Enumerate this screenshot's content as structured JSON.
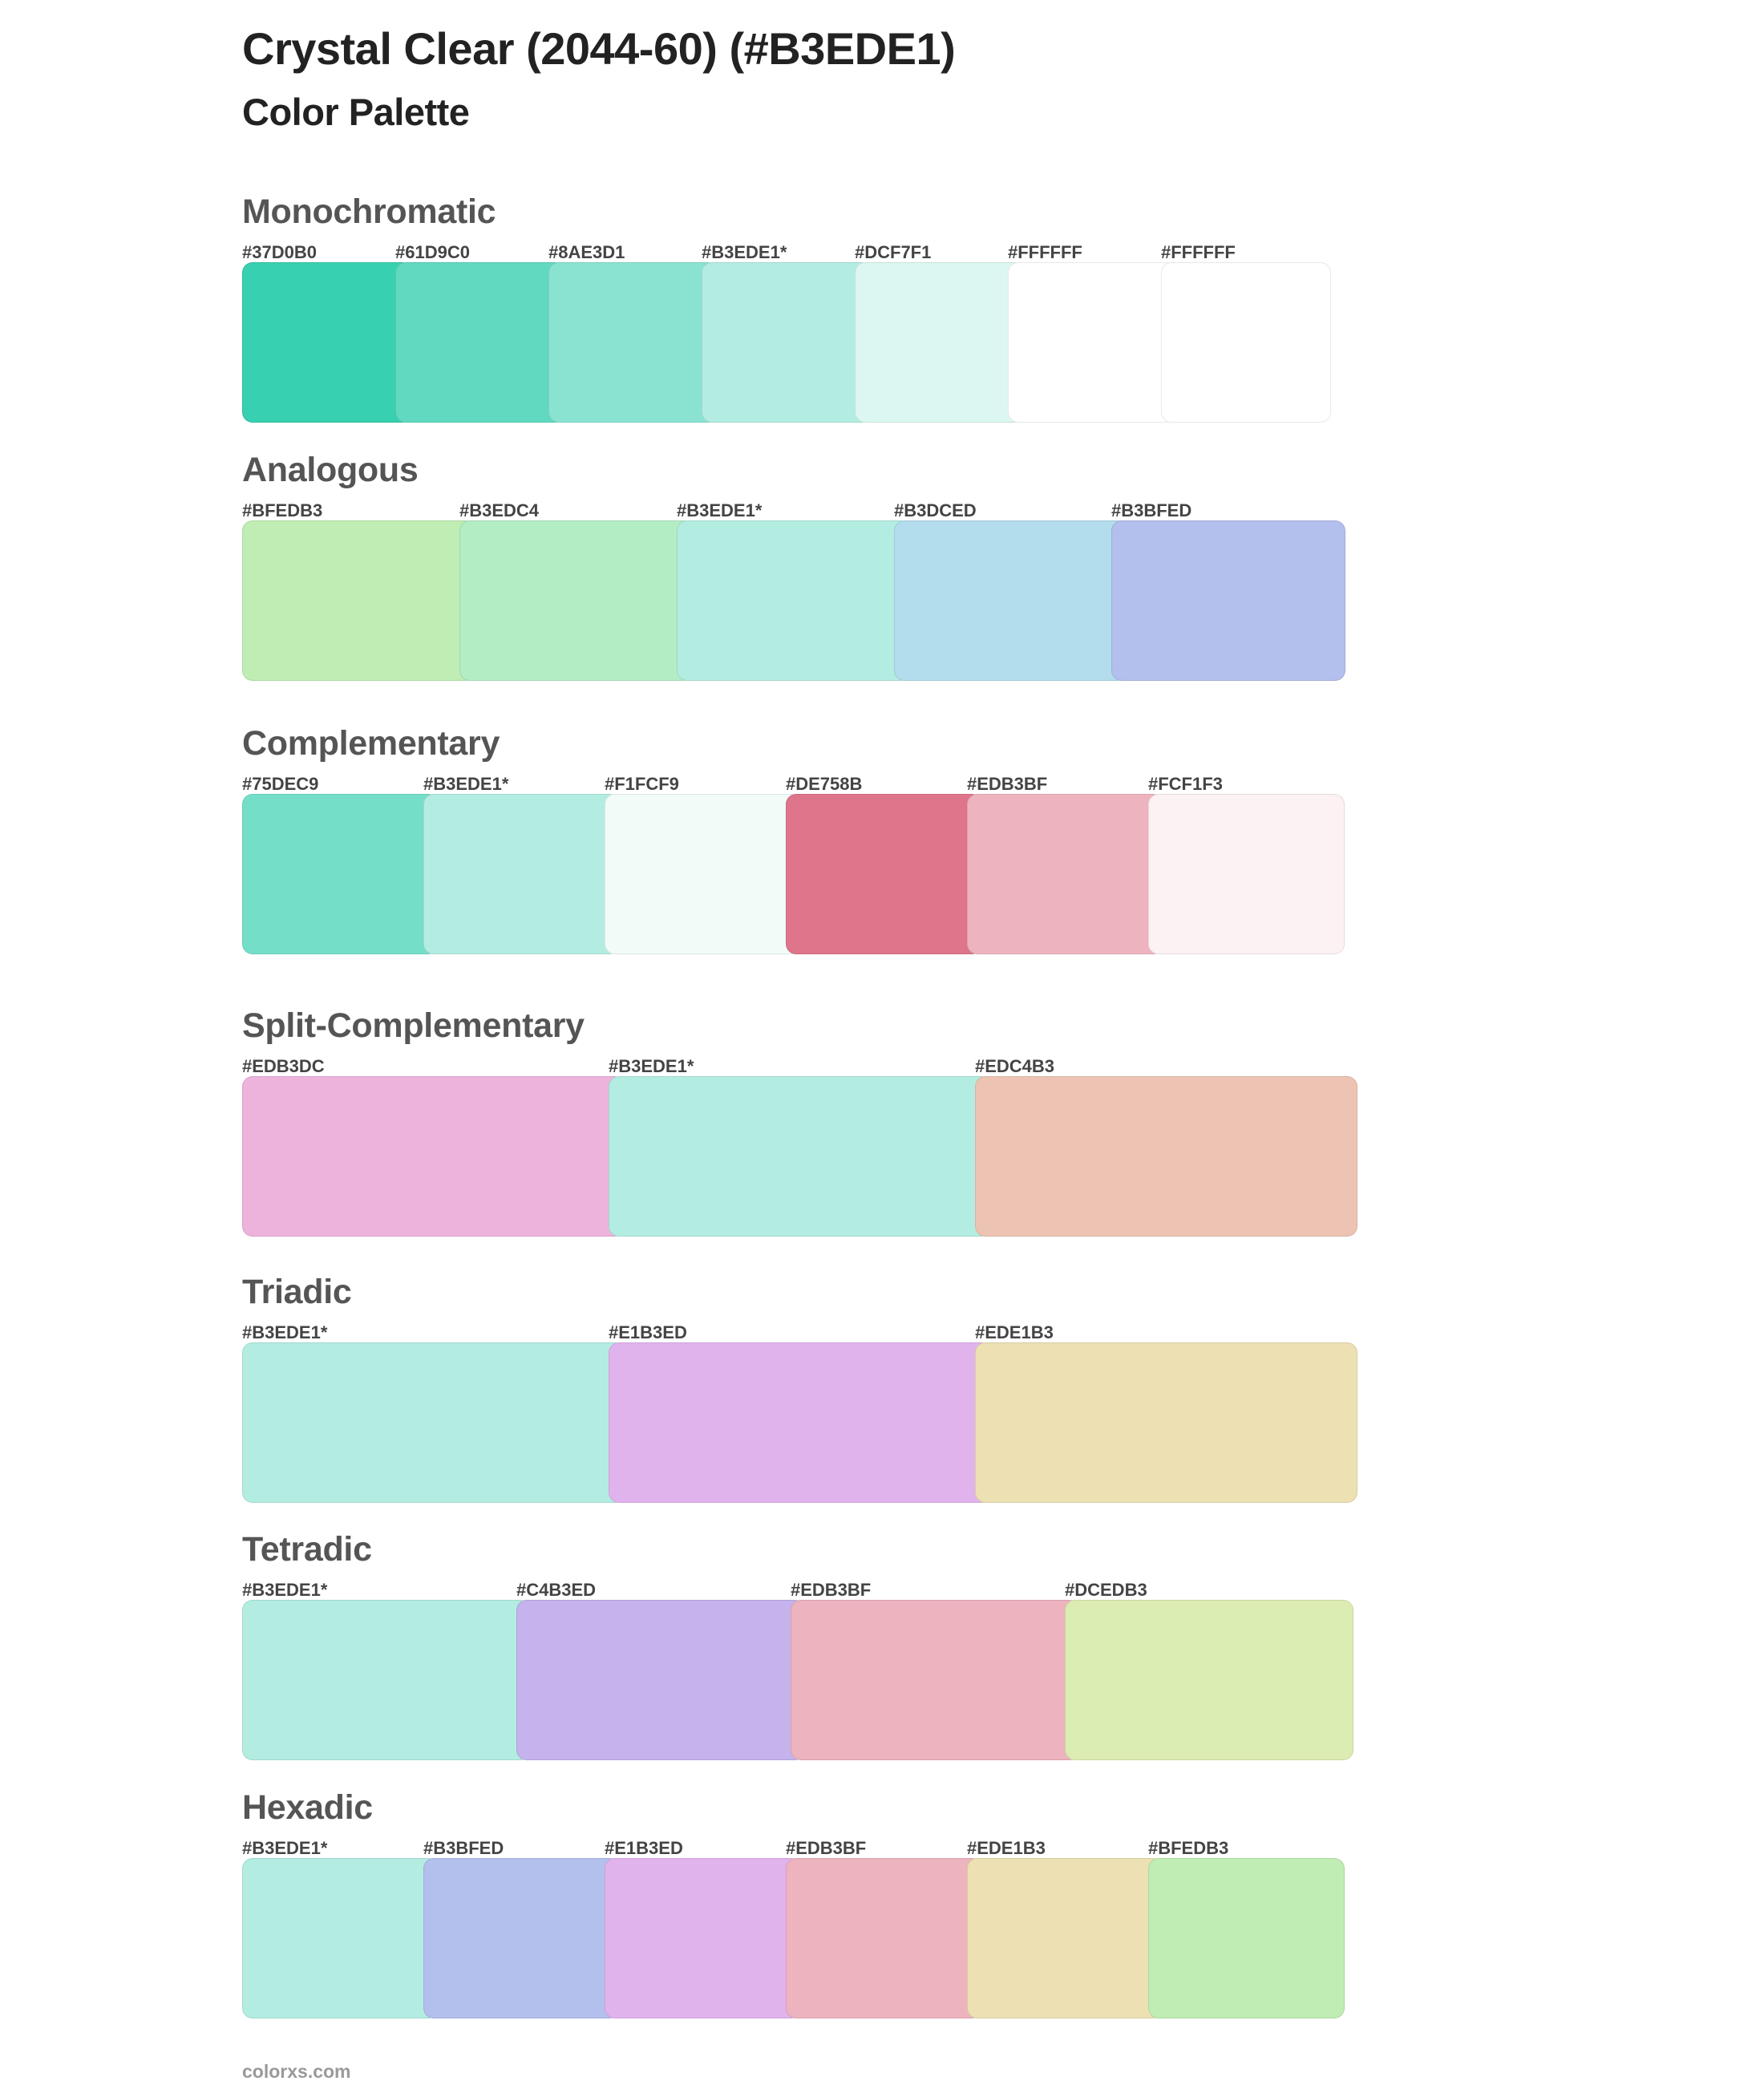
{
  "title": "Crystal Clear (2044-60) (#B3EDE1)",
  "subtitle": "Color Palette",
  "sections": [
    {
      "name": "Monochromatic",
      "colors": [
        {
          "label": "#37D0B0",
          "hex": "#37D0B0"
        },
        {
          "label": "#61D9C0",
          "hex": "#61D9C0"
        },
        {
          "label": "#8AE3D1",
          "hex": "#8AE3D1"
        },
        {
          "label": "#B3EDE1*",
          "hex": "#B3EDE1"
        },
        {
          "label": "#DCF7F1",
          "hex": "#DCF7F1"
        },
        {
          "label": "#FFFFFF",
          "hex": "#FFFFFF"
        },
        {
          "label": "#FFFFFF",
          "hex": "#FFFFFF"
        }
      ]
    },
    {
      "name": "Analogous",
      "colors": [
        {
          "label": "#BFEDB3",
          "hex": "#BFEDB3"
        },
        {
          "label": "#B3EDC4",
          "hex": "#B3EDC4"
        },
        {
          "label": "#B3EDE1*",
          "hex": "#B3EDE1"
        },
        {
          "label": "#B3DCED",
          "hex": "#B3DCED"
        },
        {
          "label": "#B3BFED",
          "hex": "#B3BFED"
        }
      ]
    },
    {
      "name": "Complementary",
      "colors": [
        {
          "label": "#75DEC9",
          "hex": "#75DEC9"
        },
        {
          "label": "#B3EDE1*",
          "hex": "#B3EDE1"
        },
        {
          "label": "#F1FCF9",
          "hex": "#F1FCF9"
        },
        {
          "label": "#DE758B",
          "hex": "#DE758B"
        },
        {
          "label": "#EDB3BF",
          "hex": "#EDB3BF"
        },
        {
          "label": "#FCF1F3",
          "hex": "#FCF1F3"
        }
      ]
    },
    {
      "name": "Split-Complementary",
      "colors": [
        {
          "label": "#EDB3DC",
          "hex": "#EDB3DC"
        },
        {
          "label": "#B3EDE1*",
          "hex": "#B3EDE1"
        },
        {
          "label": "#EDC4B3",
          "hex": "#EDC4B3"
        }
      ]
    },
    {
      "name": "Triadic",
      "colors": [
        {
          "label": "#B3EDE1*",
          "hex": "#B3EDE1"
        },
        {
          "label": "#E1B3ED",
          "hex": "#E1B3ED"
        },
        {
          "label": "#EDE1B3",
          "hex": "#EDE1B3"
        }
      ]
    },
    {
      "name": "Tetradic",
      "colors": [
        {
          "label": "#B3EDE1*",
          "hex": "#B3EDE1"
        },
        {
          "label": "#C4B3ED",
          "hex": "#C4B3ED"
        },
        {
          "label": "#EDB3BF",
          "hex": "#EDB3BF"
        },
        {
          "label": "#DCEDB3",
          "hex": "#DCEDB3"
        }
      ]
    },
    {
      "name": "Hexadic",
      "colors": [
        {
          "label": "#B3EDE1*",
          "hex": "#B3EDE1"
        },
        {
          "label": "#B3BFED",
          "hex": "#B3BFED"
        },
        {
          "label": "#E1B3ED",
          "hex": "#E1B3ED"
        },
        {
          "label": "#EDB3BF",
          "hex": "#EDB3BF"
        },
        {
          "label": "#EDE1B3",
          "hex": "#EDE1B3"
        },
        {
          "label": "#BFEDB3",
          "hex": "#BFEDB3"
        }
      ]
    }
  ],
  "footer": "colorxs.com"
}
